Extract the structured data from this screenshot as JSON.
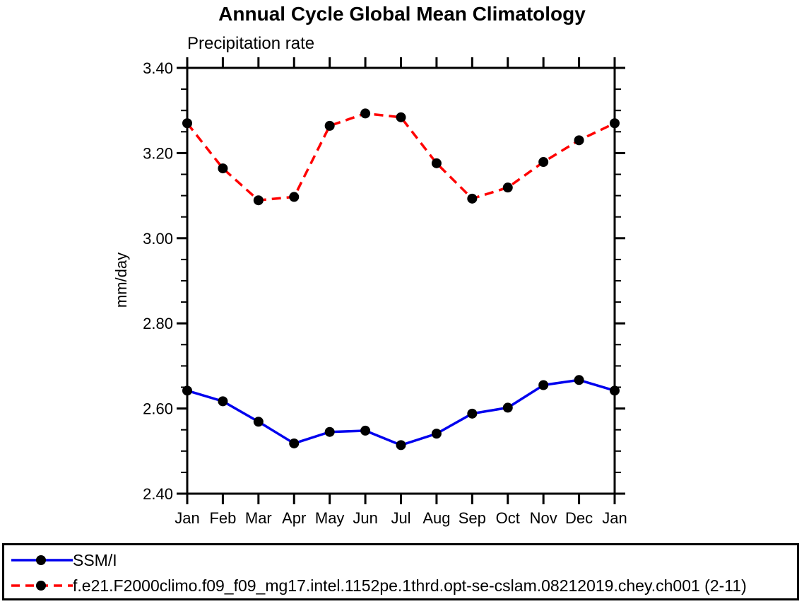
{
  "chart_data": {
    "type": "line",
    "title": "Annual Cycle Global Mean Climatology",
    "subtitle": "Precipitation rate",
    "ylabel": "mm/day",
    "xlabel": "",
    "categories": [
      "Jan",
      "Feb",
      "Mar",
      "Apr",
      "May",
      "Jun",
      "Jul",
      "Aug",
      "Sep",
      "Oct",
      "Nov",
      "Dec",
      "Jan"
    ],
    "ylim": [
      2.4,
      3.4
    ],
    "y_major_step": 0.2,
    "y_minor_step": 0.05,
    "y_tick_labels": [
      "2.40",
      "2.60",
      "2.80",
      "3.00",
      "3.20",
      "3.40"
    ],
    "grid": false,
    "legend_position": "bottom-outside-box",
    "axis_color": "#000000",
    "marker_color": "#000000",
    "series": [
      {
        "name": "SSM/I",
        "color": "#0000ee",
        "style": "solid",
        "marker": "circle",
        "values": [
          2.642,
          2.617,
          2.569,
          2.518,
          2.545,
          2.548,
          2.514,
          2.541,
          2.588,
          2.602,
          2.655,
          2.667,
          2.642
        ]
      },
      {
        "name": "f.e21.F2000climo.f09_f09_mg17.intel.1152pe.1thrd.opt-se-cslam.08212019.chey.ch001 (2-11)",
        "color": "#ff0000",
        "style": "dashed",
        "marker": "circle",
        "values": [
          3.27,
          3.164,
          3.089,
          3.097,
          3.264,
          3.293,
          3.284,
          3.176,
          3.093,
          3.119,
          3.179,
          3.23,
          3.27
        ]
      }
    ]
  }
}
